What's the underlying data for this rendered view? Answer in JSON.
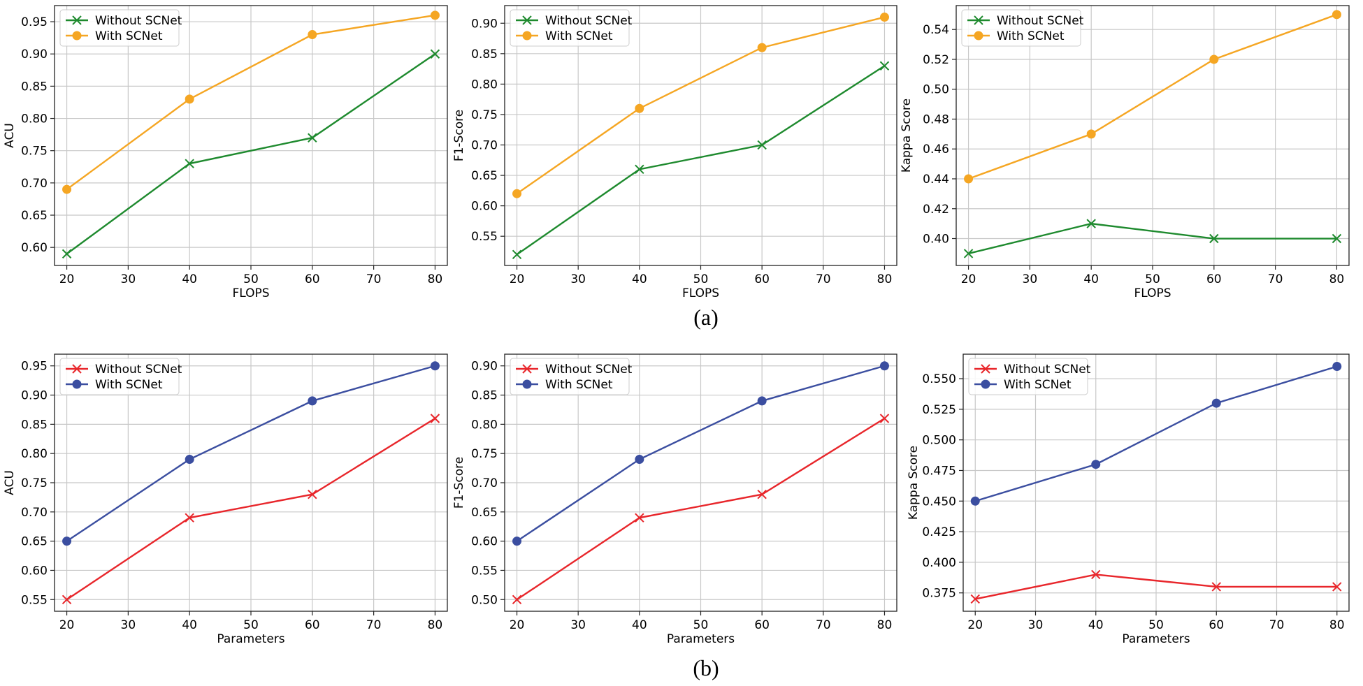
{
  "captions": {
    "top": "(a)",
    "bottom": "(b)"
  },
  "chart_data": [
    {
      "type": "line",
      "xlabel": "FLOPS",
      "ylabel": "ACU",
      "x": [
        20,
        40,
        60,
        80
      ],
      "xticks": [
        20,
        30,
        40,
        50,
        60,
        70,
        80
      ],
      "xlim": [
        18,
        82
      ],
      "yticks": [
        0.6,
        0.65,
        0.7,
        0.75,
        0.8,
        0.85,
        0.9,
        0.95
      ],
      "ylim": [
        0.572,
        0.975
      ],
      "ydecimals": 2,
      "legend": "top-left",
      "grid": true,
      "series": [
        {
          "name": "Without SCNet",
          "values": [
            0.59,
            0.73,
            0.77,
            0.9
          ],
          "color": "#1e8a2e",
          "marker": "x"
        },
        {
          "name": "With SCNet",
          "values": [
            0.69,
            0.83,
            0.93,
            0.96
          ],
          "color": "#f5a623",
          "marker": "o"
        }
      ]
    },
    {
      "type": "line",
      "xlabel": "FLOPS",
      "ylabel": "F1-Score",
      "x": [
        20,
        40,
        60,
        80
      ],
      "xticks": [
        20,
        30,
        40,
        50,
        60,
        70,
        80
      ],
      "xlim": [
        18,
        82
      ],
      "yticks": [
        0.55,
        0.6,
        0.65,
        0.7,
        0.75,
        0.8,
        0.85,
        0.9
      ],
      "ylim": [
        0.502,
        0.929
      ],
      "ydecimals": 2,
      "legend": "top-left",
      "grid": true,
      "series": [
        {
          "name": "Without SCNet",
          "values": [
            0.52,
            0.66,
            0.7,
            0.83
          ],
          "color": "#1e8a2e",
          "marker": "x"
        },
        {
          "name": "With SCNet",
          "values": [
            0.62,
            0.76,
            0.86,
            0.91
          ],
          "color": "#f5a623",
          "marker": "o"
        }
      ]
    },
    {
      "type": "line",
      "xlabel": "FLOPS",
      "ylabel": "Kappa Score",
      "x": [
        20,
        40,
        60,
        80
      ],
      "xticks": [
        20,
        30,
        40,
        50,
        60,
        70,
        80
      ],
      "xlim": [
        18,
        82
      ],
      "yticks": [
        0.4,
        0.42,
        0.44,
        0.46,
        0.48,
        0.5,
        0.52,
        0.54
      ],
      "ylim": [
        0.382,
        0.556
      ],
      "ydecimals": 2,
      "legend": "top-left",
      "grid": true,
      "series": [
        {
          "name": "Without SCNet",
          "values": [
            0.39,
            0.41,
            0.4,
            0.4
          ],
          "color": "#1e8a2e",
          "marker": "x"
        },
        {
          "name": "With SCNet",
          "values": [
            0.44,
            0.47,
            0.52,
            0.55
          ],
          "color": "#f5a623",
          "marker": "o"
        }
      ]
    },
    {
      "type": "line",
      "xlabel": "Parameters",
      "ylabel": "ACU",
      "x": [
        20,
        40,
        60,
        80
      ],
      "xticks": [
        20,
        30,
        40,
        50,
        60,
        70,
        80
      ],
      "xlim": [
        18,
        82
      ],
      "yticks": [
        0.55,
        0.6,
        0.65,
        0.7,
        0.75,
        0.8,
        0.85,
        0.9,
        0.95
      ],
      "ylim": [
        0.53,
        0.97
      ],
      "ydecimals": 2,
      "legend": "top-left",
      "grid": true,
      "series": [
        {
          "name": "Without SCNet",
          "values": [
            0.55,
            0.69,
            0.73,
            0.86
          ],
          "color": "#e8262b",
          "marker": "x"
        },
        {
          "name": "With SCNet",
          "values": [
            0.65,
            0.79,
            0.89,
            0.95
          ],
          "color": "#3b4ea0",
          "marker": "o"
        }
      ]
    },
    {
      "type": "line",
      "xlabel": "Parameters",
      "ylabel": "F1-Score",
      "x": [
        20,
        40,
        60,
        80
      ],
      "xticks": [
        20,
        30,
        40,
        50,
        60,
        70,
        80
      ],
      "xlim": [
        18,
        82
      ],
      "yticks": [
        0.5,
        0.55,
        0.6,
        0.65,
        0.7,
        0.75,
        0.8,
        0.85,
        0.9
      ],
      "ylim": [
        0.48,
        0.92
      ],
      "ydecimals": 2,
      "legend": "top-left",
      "grid": true,
      "series": [
        {
          "name": "Without SCNet",
          "values": [
            0.5,
            0.64,
            0.68,
            0.81
          ],
          "color": "#e8262b",
          "marker": "x"
        },
        {
          "name": "With SCNet",
          "values": [
            0.6,
            0.74,
            0.84,
            0.9
          ],
          "color": "#3b4ea0",
          "marker": "o"
        }
      ]
    },
    {
      "type": "line",
      "xlabel": "Parameters",
      "ylabel": "Kappa Score",
      "x": [
        20,
        40,
        60,
        80
      ],
      "xticks": [
        20,
        30,
        40,
        50,
        60,
        70,
        80
      ],
      "xlim": [
        18,
        82
      ],
      "yticks": [
        0.375,
        0.4,
        0.425,
        0.45,
        0.475,
        0.5,
        0.525,
        0.55
      ],
      "ylim": [
        0.36,
        0.57
      ],
      "ydecimals": 3,
      "legend": "top-left",
      "grid": true,
      "series": [
        {
          "name": "Without SCNet",
          "values": [
            0.37,
            0.39,
            0.38,
            0.38
          ],
          "color": "#e8262b",
          "marker": "x"
        },
        {
          "name": "With SCNet",
          "values": [
            0.45,
            0.48,
            0.53,
            0.56
          ],
          "color": "#3b4ea0",
          "marker": "o"
        }
      ]
    }
  ]
}
